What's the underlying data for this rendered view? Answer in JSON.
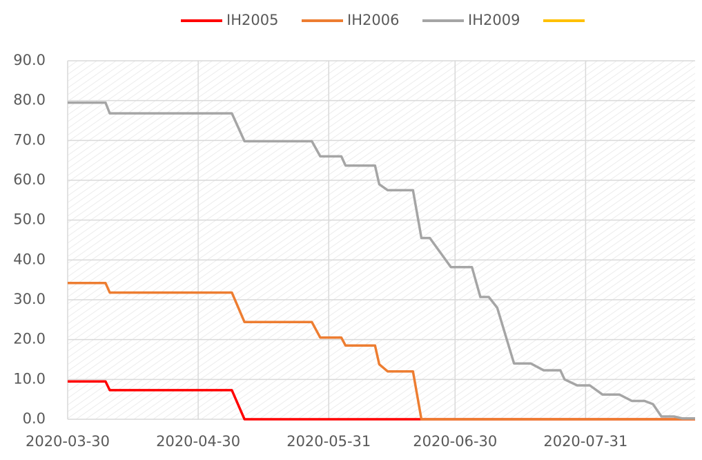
{
  "chart_data": {
    "type": "line",
    "x": [
      "2020-03-30",
      "2020-04-08",
      "2020-04-09",
      "2020-05-08",
      "2020-05-11",
      "2020-05-27",
      "2020-05-29",
      "2020-06-03",
      "2020-06-04",
      "2020-06-11",
      "2020-06-12",
      "2020-06-14",
      "2020-06-20",
      "2020-06-22",
      "2020-06-24",
      "2020-06-29",
      "2020-07-04",
      "2020-07-06",
      "2020-07-08",
      "2020-07-10",
      "2020-07-14",
      "2020-07-18",
      "2020-07-21",
      "2020-07-25",
      "2020-07-26",
      "2020-07-29",
      "2020-08-01",
      "2020-08-04",
      "2020-08-08",
      "2020-08-11",
      "2020-08-14",
      "2020-08-16",
      "2020-08-18",
      "2020-08-21",
      "2020-08-23",
      "2020-08-26"
    ],
    "series": [
      {
        "name": "IH2005",
        "color": "#ff0000",
        "values": [
          9.5,
          9.5,
          7.3,
          7.3,
          0,
          0,
          0,
          0,
          0,
          0,
          0,
          0,
          0,
          0,
          0,
          0,
          0,
          0,
          0,
          0,
          0,
          0,
          0,
          0,
          0,
          0,
          0,
          0,
          0,
          0,
          0,
          0,
          0,
          0,
          0,
          0
        ]
      },
      {
        "name": "IH2006",
        "color": "#ed7d31",
        "values": [
          34.2,
          34.2,
          31.8,
          31.8,
          24.4,
          24.4,
          20.5,
          20.5,
          18.5,
          18.5,
          13.8,
          12,
          12,
          0,
          0,
          0,
          0,
          0,
          0,
          0,
          0,
          0,
          0,
          0,
          0,
          0,
          0,
          0,
          0,
          0,
          0,
          0,
          0,
          0,
          0,
          0
        ]
      },
      {
        "name": "IH2009",
        "color": "#a5a5a5",
        "values": [
          79.5,
          79.5,
          76.8,
          76.8,
          69.8,
          69.8,
          66,
          66,
          63.7,
          63.7,
          59,
          57.5,
          57.5,
          45.5,
          45.5,
          38.2,
          38.2,
          30.7,
          30.7,
          28,
          14,
          14,
          12.3,
          12.3,
          10,
          8.5,
          8.5,
          6.2,
          6.2,
          4.6,
          4.6,
          3.8,
          0.7,
          0.7,
          0.2,
          0.2
        ]
      },
      {
        "color": "#ffc000",
        "values": [
          null,
          null,
          null,
          null,
          null,
          null,
          null,
          null,
          null,
          null,
          null,
          null,
          null,
          null,
          null,
          null,
          null,
          null,
          null,
          null,
          null,
          null,
          null,
          null,
          null,
          null,
          null,
          null,
          null,
          null,
          null,
          null,
          null,
          null,
          null,
          null
        ]
      }
    ],
    "xlim": [
      "2020-03-30",
      "2020-08-26"
    ],
    "xticks": [
      "2020-03-30",
      "2020-04-30",
      "2020-05-31",
      "2020-06-30",
      "2020-07-31"
    ],
    "ylim": [
      0,
      90
    ],
    "yticks": [
      {
        "value": 0,
        "label": "0.0"
      },
      {
        "value": 10,
        "label": "10.0"
      },
      {
        "value": 20,
        "label": "20.0"
      },
      {
        "value": 30,
        "label": "30.0"
      },
      {
        "value": 40,
        "label": "40.0"
      },
      {
        "value": 50,
        "label": "50.0"
      },
      {
        "value": 60,
        "label": "60.0"
      },
      {
        "value": 70,
        "label": "70.0"
      },
      {
        "value": 80,
        "label": "80.0"
      },
      {
        "value": 90,
        "label": "90.0"
      }
    ],
    "grid": true,
    "legend": "top"
  }
}
